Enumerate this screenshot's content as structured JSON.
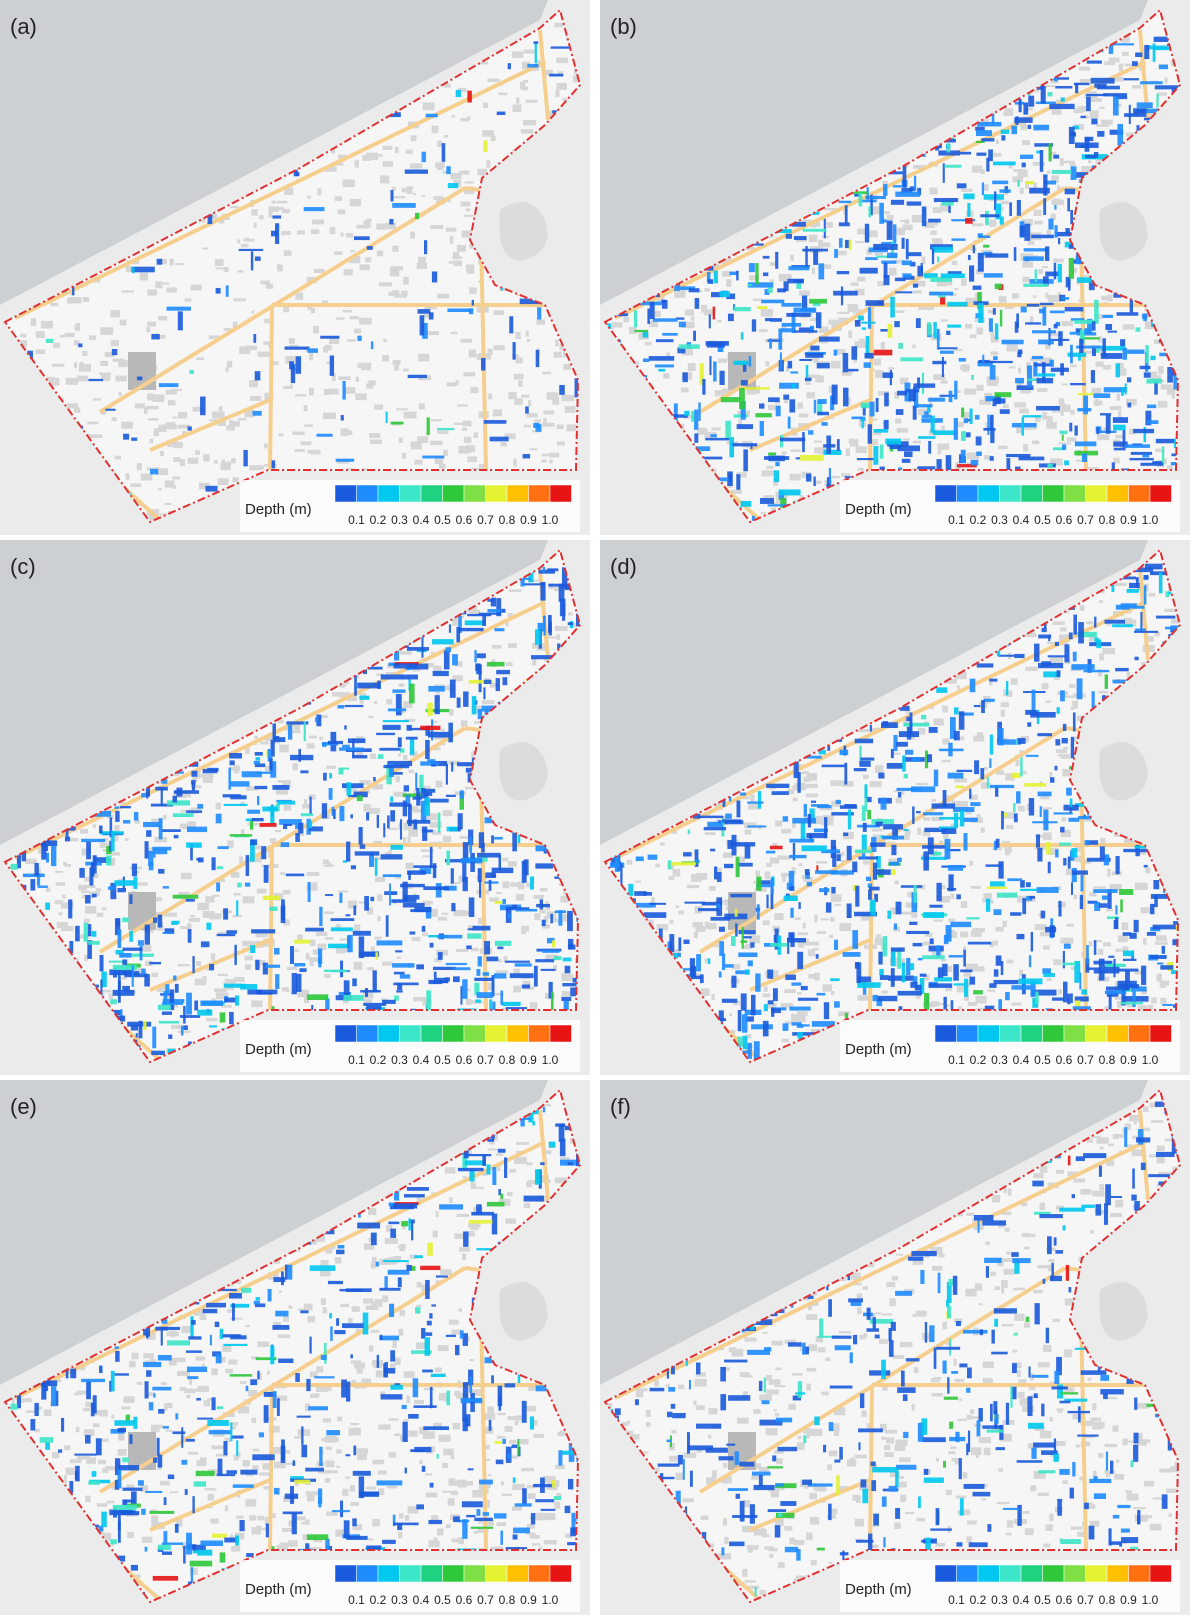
{
  "panels": [
    {
      "label": "(a)"
    },
    {
      "label": "(b)"
    },
    {
      "label": "(c)"
    },
    {
      "label": "(d)"
    },
    {
      "label": "(e)"
    },
    {
      "label": "(f)"
    }
  ],
  "legend": {
    "title": "Depth (m)",
    "colors": [
      "#1a5adc",
      "#1e8cff",
      "#00c8f0",
      "#3ce6c8",
      "#1ed282",
      "#2ec83a",
      "#7ee044",
      "#e4f232",
      "#ffc000",
      "#ff7010",
      "#e81414"
    ],
    "labels": [
      "0.1",
      "0.2",
      "0.3",
      "0.4",
      "0.5",
      "0.6",
      "0.7",
      "0.8",
      "0.9",
      "1.0"
    ]
  }
}
